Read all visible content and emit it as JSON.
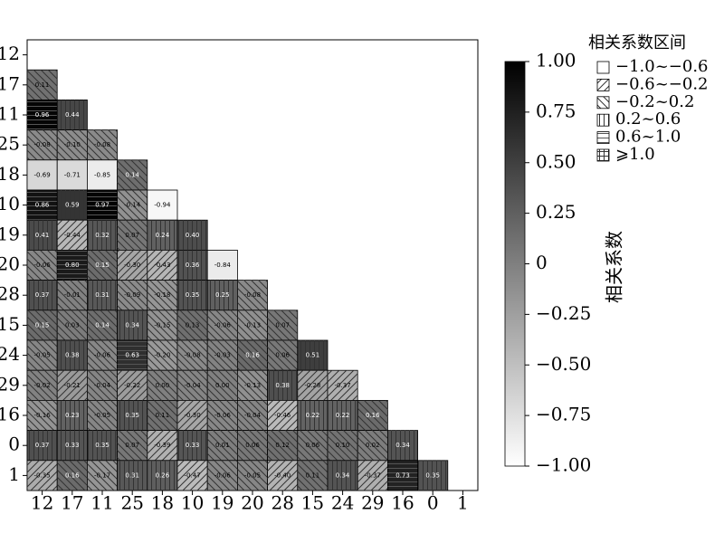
{
  "chart_data": {
    "type": "heatmap",
    "x_categories": [
      "12",
      "17",
      "11",
      "25",
      "18",
      "10",
      "19",
      "20",
      "28",
      "15",
      "24",
      "29",
      "16",
      "0",
      "1"
    ],
    "y_categories": [
      "12",
      "17",
      "11",
      "25",
      "18",
      "10",
      "19",
      "20",
      "28",
      "15",
      "24",
      "29",
      "16",
      "0",
      "1"
    ],
    "values": [
      [],
      [
        0.11
      ],
      [
        0.96,
        0.44
      ],
      [
        -0.08,
        -0.1,
        -0.08
      ],
      [
        -0.69,
        -0.71,
        -0.85,
        0.14
      ],
      [
        0.86,
        0.59,
        0.97,
        -0.14,
        -0.94
      ],
      [
        0.41,
        -0.44,
        0.32,
        0.07,
        0.24,
        0.4
      ],
      [
        -0.06,
        0.8,
        0.15,
        -0.3,
        -0.43,
        0.36,
        -0.84
      ],
      [
        0.37,
        -0.01,
        0.31,
        -0.09,
        -0.18,
        0.35,
        0.25,
        -0.08
      ],
      [
        0.15,
        0.03,
        0.14,
        0.34,
        -0.15,
        0.13,
        -0.06,
        -0.13,
        0.07
      ],
      [
        -0.05,
        0.38,
        -0.06,
        0.63,
        -0.2,
        -0.08,
        -0.03,
        0.16,
        0.06,
        0.51
      ],
      [
        -0.02,
        -0.21,
        -0.04,
        -0.22,
        0.0,
        -0.04,
        0.0,
        -0.13,
        0.38,
        -0.28,
        -0.37
      ],
      [
        -0.16,
        0.23,
        -0.05,
        0.35,
        0.11,
        -0.3,
        -0.06,
        -0.04,
        -0.46,
        0.22,
        0.22,
        0.16
      ],
      [
        0.37,
        0.33,
        0.35,
        0.07,
        -0.39,
        0.33,
        0.01,
        0.06,
        0.12,
        0.06,
        0.1,
        0.02,
        0.34
      ],
      [
        -0.35,
        0.16,
        -0.17,
        0.31,
        0.26,
        -0.47,
        -0.06,
        -0.05,
        -0.4,
        0.11,
        0.34,
        -0.37,
        0.73,
        0.35
      ]
    ],
    "value_labels": [
      [],
      [
        "0.11"
      ],
      [
        "0.96",
        "0.44"
      ],
      [
        "-0.08",
        "-0.10",
        "-0.08"
      ],
      [
        "-0.69",
        "-0.71",
        "-0.85",
        "0.14"
      ],
      [
        "0.86",
        "0.59",
        "0.97",
        "-0.14",
        "-0.94"
      ],
      [
        "0.41",
        "-0.44",
        "0.32",
        "0.07",
        "0.24",
        "0.40"
      ],
      [
        "-0.06",
        "0.80",
        "0.15",
        "-0.30",
        "-0.43",
        "0.36",
        "-0.84"
      ],
      [
        "0.37",
        "-0.01",
        "0.31",
        "-0.09",
        "-0.18",
        "0.35",
        "0.25",
        "-0.08"
      ],
      [
        "0.15",
        "0.03",
        "0.14",
        "0.34",
        "-0.15",
        "0.13",
        "-0.06",
        "-0.13",
        "0.07"
      ],
      [
        "-0.05",
        "0.38",
        "-0.06",
        "0.63",
        "-0.20",
        "-0.08",
        "-0.03",
        "0.16",
        "0.06",
        "0.51"
      ],
      [
        "-0.02",
        "-0.21",
        "-0.04",
        "-0.22",
        "0.00",
        "-0.04",
        "0.00",
        "-0.13",
        "0.38",
        "-0.28",
        "-0.37"
      ],
      [
        "-0.16",
        "0.23",
        "-0.05",
        "0.35",
        "0.11",
        "-0.30",
        "-0.06",
        "-0.04",
        "-0.46",
        "0.22",
        "0.22",
        "0.16"
      ],
      [
        "0.37",
        "0.33",
        "0.35",
        "0.07",
        "-0.39",
        "0.33",
        "0.01",
        "0.06",
        "0.12",
        "0.06",
        "0.10",
        "0.02",
        "0.34"
      ],
      [
        "-0.35",
        "0.16",
        "-0.17",
        "0.31",
        "0.26",
        "-0.47",
        "-0.06",
        "-0.05",
        "-0.40",
        "0.11",
        "0.34",
        "-0.37",
        "0.73",
        "0.35"
      ]
    ],
    "colors": [
      "#ffffff",
      "#000000"
    ],
    "clim": [
      -1,
      1
    ],
    "colorbar_label": "相关系数",
    "colorbar_ticks": [
      {
        "value": 1,
        "label": "1.00"
      },
      {
        "value": 0.75,
        "label": "0.75"
      },
      {
        "value": 0.5,
        "label": "0.50"
      },
      {
        "value": 0.25,
        "label": "0.25"
      },
      0,
      {
        "value": -0.25,
        "label": "−0.25"
      },
      {
        "value": -0.5,
        "label": "−0.50"
      },
      {
        "value": -0.75,
        "label": "−0.75"
      },
      {
        "value": -1,
        "label": "−1.00"
      }
    ],
    "legend_title": "相关系数区间",
    "legend": [
      {
        "label": "−1.0~−0.6",
        "lower": -1.0,
        "upper": -0.6,
        "hatch": "none"
      },
      {
        "label": "−0.6~−0.2",
        "lower": -0.6,
        "upper": -0.2,
        "hatch": "fwd"
      },
      {
        "label": "−0.2~0.2",
        "lower": -0.2,
        "upper": 0.2,
        "hatch": "back"
      },
      {
        "label": "0.2~0.6",
        "lower": 0.2,
        "upper": 0.6,
        "hatch": "vert"
      },
      {
        "label": "0.6~1.0",
        "lower": 0.6,
        "upper": 1.0,
        "hatch": "horiz"
      },
      {
        "label": "⩾1.0",
        "lower": 1.0,
        "hatch": "cross"
      }
    ],
    "legend_position": "upper right"
  }
}
